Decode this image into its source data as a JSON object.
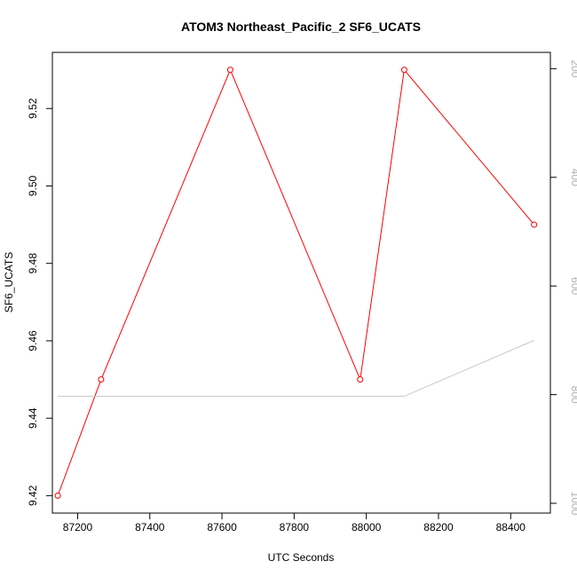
{
  "chart_data": {
    "type": "line",
    "title": "ATOM3 Northeast_Pacific_2 SF6_UCATS",
    "xlabel": "UTC Seconds",
    "ylabel": "SF6_UCATS",
    "xlim": [
      87130,
      88510
    ],
    "ylim": [
      9.4155,
      9.5345
    ],
    "x_ticks": [
      87200,
      87400,
      87600,
      87800,
      88000,
      88200,
      88400
    ],
    "x_tick_labels": [
      "87200",
      "87400",
      "87600",
      "87800",
      "88000",
      "88200",
      "88400"
    ],
    "y_ticks": [
      9.42,
      9.44,
      9.46,
      9.48,
      9.5,
      9.52
    ],
    "y_tick_labels": [
      "9.42",
      "9.44",
      "9.46",
      "9.48",
      "9.50",
      "9.52"
    ],
    "y2_ticks": [
      200,
      400,
      600,
      800,
      1000
    ],
    "y2_tick_labels": [
      "200",
      "400",
      "600",
      "800",
      "1000"
    ],
    "y2_reversed": true,
    "y2lim": [
      1018,
      170
    ],
    "series": [
      {
        "role": "primary",
        "color": "#ff0000",
        "markers": "open-circle",
        "x": [
          87145,
          87265,
          87623,
          87983,
          88105,
          88465
        ],
        "y": [
          9.42,
          9.45,
          9.53,
          9.45,
          9.53,
          9.49
        ]
      },
      {
        "role": "secondary",
        "color": "#c8c8c8",
        "markers": "none",
        "x": [
          87145,
          87623,
          88105,
          88465
        ],
        "y2": [
          803,
          803,
          803,
          700
        ]
      }
    ],
    "grid": false,
    "legend": "none"
  }
}
